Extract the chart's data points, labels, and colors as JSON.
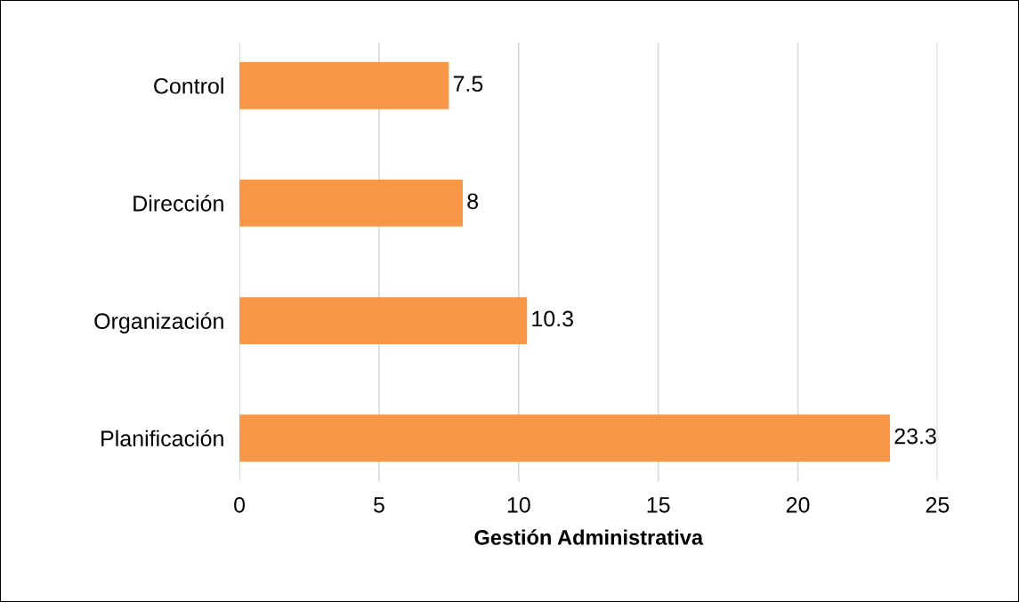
{
  "chart_data": {
    "type": "bar",
    "orientation": "horizontal",
    "xlabel": "Gestión Administrativa",
    "categories": [
      "Control",
      "Dirección",
      "Organización",
      "Planificación"
    ],
    "values": [
      7.5,
      8,
      10.3,
      23.3
    ],
    "color": "#f79646",
    "xlim": [
      0,
      25
    ],
    "xticks": [
      0,
      5,
      10,
      15,
      20,
      25
    ],
    "grid": "x",
    "data_labels": true
  }
}
